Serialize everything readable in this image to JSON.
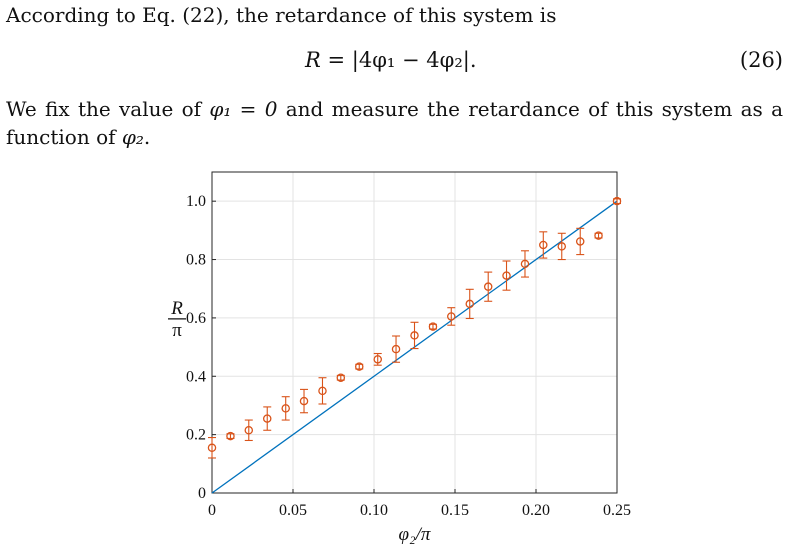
{
  "paragraph": {
    "line1": "According to Eq. (22), the retardance of this system is",
    "line2_prefix": "We fix the value of",
    "line2_math": "φ₁ = 0",
    "line2_suffix": "and measure the retardance of this system as a",
    "line3_prefix": "function of",
    "line3_math": "φ₂",
    "line3_suffix": "."
  },
  "equation": {
    "lhs": "R",
    "rhs": "= |4φ₁ − 4φ₂|.",
    "number": "(26)"
  },
  "chart_data": {
    "type": "scatter",
    "xlabel": "φ₂/π",
    "ylabel_num": "R",
    "ylabel_den": "π",
    "xlim": [
      0,
      0.25
    ],
    "ylim": [
      0,
      1.1
    ],
    "xticks": [
      0,
      0.05,
      0.1,
      0.15,
      0.2,
      0.25
    ],
    "xtick_labels": [
      "0",
      "0.05",
      "0.10",
      "0.15",
      "0.20",
      "0.25"
    ],
    "yticks": [
      0,
      0.2,
      0.4,
      0.6,
      0.8,
      1.0
    ],
    "ytick_labels": [
      "0",
      "0.2",
      "0.4",
      "0.6",
      "0.8",
      "1.0"
    ],
    "grid": true,
    "colors": {
      "measured": "#d95319",
      "theory": "#0072bd"
    },
    "series": [
      {
        "kind": "points-with-error",
        "x": [
          0,
          0.0114,
          0.0227,
          0.0341,
          0.0455,
          0.0568,
          0.0682,
          0.0795,
          0.0909,
          0.1023,
          0.1136,
          0.125,
          0.1364,
          0.1477,
          0.1591,
          0.1705,
          0.1818,
          0.1932,
          0.2045,
          0.2159,
          0.2273,
          0.2386,
          0.25
        ],
        "y": [
          0.155,
          0.195,
          0.215,
          0.255,
          0.29,
          0.315,
          0.35,
          0.395,
          0.433,
          0.458,
          0.493,
          0.54,
          0.57,
          0.605,
          0.648,
          0.707,
          0.745,
          0.785,
          0.85,
          0.845,
          0.862,
          0.882,
          1.0
        ],
        "err": [
          0.035,
          0.008,
          0.035,
          0.04,
          0.04,
          0.04,
          0.045,
          0.008,
          0.008,
          0.02,
          0.045,
          0.045,
          0.008,
          0.03,
          0.05,
          0.05,
          0.05,
          0.045,
          0.045,
          0.045,
          0.045,
          0.008,
          0.008
        ]
      },
      {
        "kind": "line",
        "x": [
          0,
          0.25
        ],
        "y": [
          0,
          1.0
        ]
      }
    ]
  }
}
